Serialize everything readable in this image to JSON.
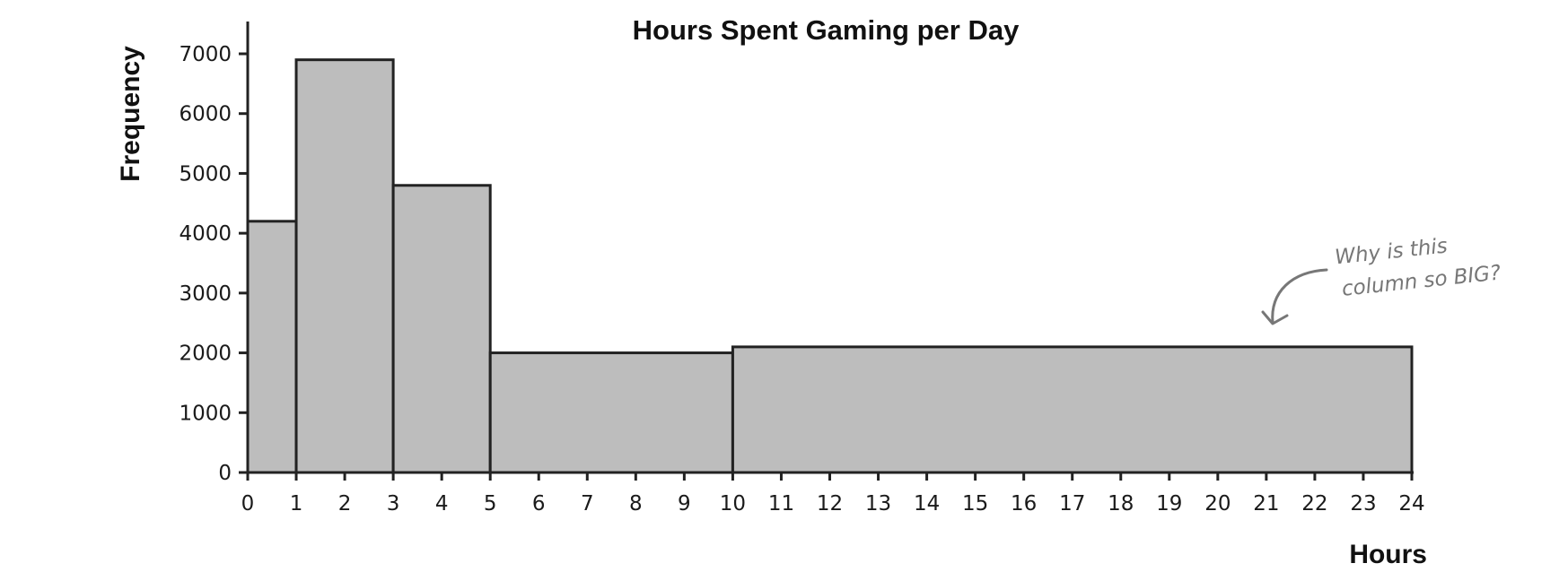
{
  "chart_data": {
    "type": "bar",
    "title": "Hours Spent Gaming per Day",
    "xlabel": "Hours",
    "ylabel": "Frequency",
    "bins": [
      {
        "x0": 0,
        "x1": 1,
        "value": 4200
      },
      {
        "x0": 1,
        "x1": 3,
        "value": 6900
      },
      {
        "x0": 3,
        "x1": 5,
        "value": 4800
      },
      {
        "x0": 5,
        "x1": 10,
        "value": 2000
      },
      {
        "x0": 10,
        "x1": 24,
        "value": 2100
      }
    ],
    "xlim": [
      0,
      24
    ],
    "ylim": [
      0,
      7000
    ],
    "x_ticks": [
      0,
      1,
      2,
      3,
      4,
      5,
      6,
      7,
      8,
      9,
      10,
      11,
      12,
      13,
      14,
      15,
      16,
      17,
      18,
      19,
      20,
      21,
      22,
      23,
      24
    ],
    "y_ticks": [
      0,
      1000,
      2000,
      3000,
      4000,
      5000,
      6000,
      7000
    ],
    "annotation": {
      "lines": [
        "Why is this",
        "column so BIG?"
      ]
    },
    "colors": {
      "bar_fill": "#bdbdbd",
      "bar_stroke": "#222222",
      "annotation": "#777777"
    }
  }
}
